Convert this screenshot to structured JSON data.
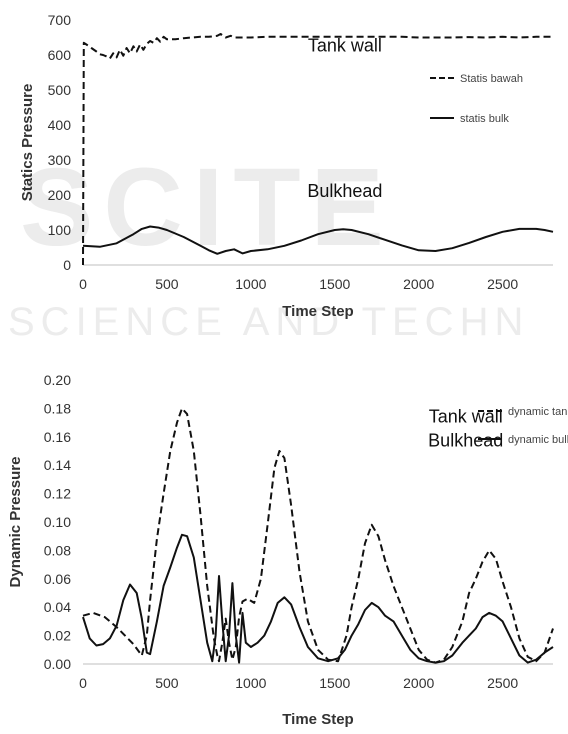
{
  "watermark": {
    "line1": "SCITE",
    "line2": "SCIENCE AND TECHN"
  },
  "chart_data": [
    {
      "type": "line",
      "xlabel": "Time Step",
      "ylabel": "Statics Pressure",
      "xlim": [
        0,
        2800
      ],
      "ylim": [
        0,
        700
      ],
      "xticks": [
        0,
        500,
        1000,
        1500,
        2000,
        2500
      ],
      "yticks": [
        0,
        100,
        200,
        300,
        400,
        500,
        600,
        700
      ],
      "grid": false,
      "legend_position": "right",
      "annotations": [
        {
          "text": "Tank wall",
          "x": 1560,
          "y": 610
        },
        {
          "text": "Bulkhead",
          "x": 1560,
          "y": 195
        }
      ],
      "series": [
        {
          "name": "Statis bawah",
          "style": "dashed",
          "x": [
            0,
            5,
            20,
            50,
            80,
            100,
            120,
            140,
            160,
            180,
            200,
            220,
            240,
            260,
            280,
            300,
            320,
            340,
            360,
            380,
            400,
            420,
            440,
            460,
            480,
            500,
            550,
            600,
            650,
            700,
            750,
            800,
            820,
            850,
            880,
            900,
            1000,
            1100,
            1200,
            1300,
            1400,
            1500,
            1600,
            1700,
            1800,
            1900,
            2000,
            2100,
            2200,
            2300,
            2400,
            2500,
            2600,
            2700,
            2800
          ],
          "y": [
            0,
            635,
            630,
            620,
            610,
            602,
            600,
            596,
            590,
            605,
            593,
            615,
            598,
            620,
            605,
            625,
            610,
            630,
            615,
            632,
            640,
            635,
            648,
            638,
            652,
            645,
            645,
            648,
            650,
            652,
            652,
            655,
            660,
            650,
            655,
            650,
            650,
            652,
            652,
            652,
            652,
            652,
            652,
            652,
            652,
            652,
            650,
            650,
            650,
            651,
            650,
            652,
            650,
            652,
            652
          ]
        },
        {
          "name": "statis bulk",
          "style": "solid",
          "x": [
            0,
            100,
            200,
            300,
            350,
            400,
            450,
            500,
            600,
            700,
            750,
            800,
            850,
            900,
            950,
            1000,
            1100,
            1200,
            1300,
            1400,
            1500,
            1550,
            1600,
            1700,
            1800,
            1900,
            2000,
            2100,
            2200,
            2300,
            2400,
            2500,
            2600,
            2700,
            2750,
            2800
          ],
          "y": [
            55,
            52,
            62,
            88,
            103,
            110,
            107,
            100,
            80,
            55,
            42,
            32,
            40,
            45,
            33,
            40,
            45,
            55,
            70,
            88,
            100,
            102,
            100,
            88,
            72,
            56,
            42,
            40,
            48,
            63,
            80,
            95,
            103,
            103,
            100,
            95
          ]
        }
      ]
    },
    {
      "type": "line",
      "xlabel": "Time Step",
      "ylabel": "Dynamic Pressure",
      "xlim": [
        0,
        2800
      ],
      "ylim": [
        0,
        0.2
      ],
      "xticks": [
        0,
        500,
        1000,
        1500,
        2000,
        2500
      ],
      "yticks": [
        "0.00",
        "0.02",
        "0.04",
        "0.06",
        "0.08",
        "0.10",
        "0.12",
        "0.14",
        "0.16",
        "0.18",
        "0.20"
      ],
      "grid": false,
      "legend_position": "top-right",
      "annotations": [
        {
          "text": "Tank wall",
          "x": 2280,
          "y": 0.17
        },
        {
          "text": "Bulkhead",
          "x": 2280,
          "y": 0.153
        }
      ],
      "series": [
        {
          "name": "dynamic tank wall",
          "style": "dashed",
          "x": [
            0,
            60,
            130,
            200,
            250,
            300,
            350,
            380,
            400,
            440,
            480,
            520,
            560,
            590,
            620,
            660,
            700,
            740,
            780,
            800,
            810,
            830,
            850,
            870,
            890,
            910,
            930,
            950,
            980,
            1020,
            1060,
            1100,
            1140,
            1170,
            1200,
            1240,
            1290,
            1340,
            1400,
            1460,
            1520,
            1570,
            1600,
            1640,
            1680,
            1720,
            1760,
            1800,
            1850,
            1900,
            1950,
            2000,
            2050,
            2100,
            2150,
            2200,
            2260,
            2300,
            2340,
            2380,
            2420,
            2460,
            2500,
            2550,
            2600,
            2650,
            2700,
            2750,
            2800
          ],
          "y": [
            0.034,
            0.036,
            0.033,
            0.026,
            0.02,
            0.014,
            0.006,
            0.02,
            0.045,
            0.088,
            0.12,
            0.15,
            0.17,
            0.18,
            0.176,
            0.15,
            0.105,
            0.055,
            0.018,
            0.006,
            0.002,
            0.015,
            0.032,
            0.015,
            0.003,
            0.012,
            0.033,
            0.044,
            0.046,
            0.043,
            0.06,
            0.098,
            0.138,
            0.15,
            0.145,
            0.112,
            0.065,
            0.03,
            0.01,
            0.003,
            0.002,
            0.02,
            0.04,
            0.06,
            0.085,
            0.098,
            0.09,
            0.073,
            0.055,
            0.04,
            0.025,
            0.01,
            0.003,
            0.001,
            0.003,
            0.012,
            0.03,
            0.05,
            0.06,
            0.072,
            0.08,
            0.074,
            0.058,
            0.04,
            0.018,
            0.005,
            0.002,
            0.008,
            0.025
          ]
        },
        {
          "name": "dynamic bulkhead",
          "style": "solid",
          "x": [
            0,
            40,
            80,
            120,
            160,
            200,
            240,
            280,
            320,
            350,
            380,
            400,
            440,
            480,
            520,
            560,
            590,
            620,
            660,
            700,
            740,
            770,
            790,
            810,
            830,
            850,
            870,
            890,
            910,
            930,
            950,
            970,
            1000,
            1040,
            1080,
            1120,
            1160,
            1200,
            1240,
            1290,
            1340,
            1400,
            1460,
            1520,
            1560,
            1600,
            1640,
            1680,
            1720,
            1760,
            1800,
            1850,
            1900,
            1950,
            2000,
            2050,
            2100,
            2150,
            2200,
            2260,
            2300,
            2340,
            2380,
            2420,
            2460,
            2500,
            2550,
            2600,
            2650,
            2700,
            2750,
            2800
          ],
          "y": [
            0.033,
            0.018,
            0.013,
            0.014,
            0.018,
            0.027,
            0.045,
            0.056,
            0.05,
            0.032,
            0.008,
            0.007,
            0.03,
            0.055,
            0.068,
            0.082,
            0.091,
            0.09,
            0.075,
            0.045,
            0.015,
            0.002,
            0.02,
            0.062,
            0.03,
            0.002,
            0.02,
            0.057,
            0.02,
            0.001,
            0.036,
            0.015,
            0.012,
            0.015,
            0.02,
            0.03,
            0.043,
            0.047,
            0.042,
            0.026,
            0.012,
            0.004,
            0.002,
            0.004,
            0.01,
            0.02,
            0.028,
            0.038,
            0.043,
            0.04,
            0.034,
            0.03,
            0.02,
            0.01,
            0.004,
            0.002,
            0.001,
            0.002,
            0.006,
            0.015,
            0.02,
            0.025,
            0.033,
            0.036,
            0.034,
            0.03,
            0.018,
            0.006,
            0.001,
            0.003,
            0.008,
            0.012
          ]
        }
      ]
    }
  ]
}
